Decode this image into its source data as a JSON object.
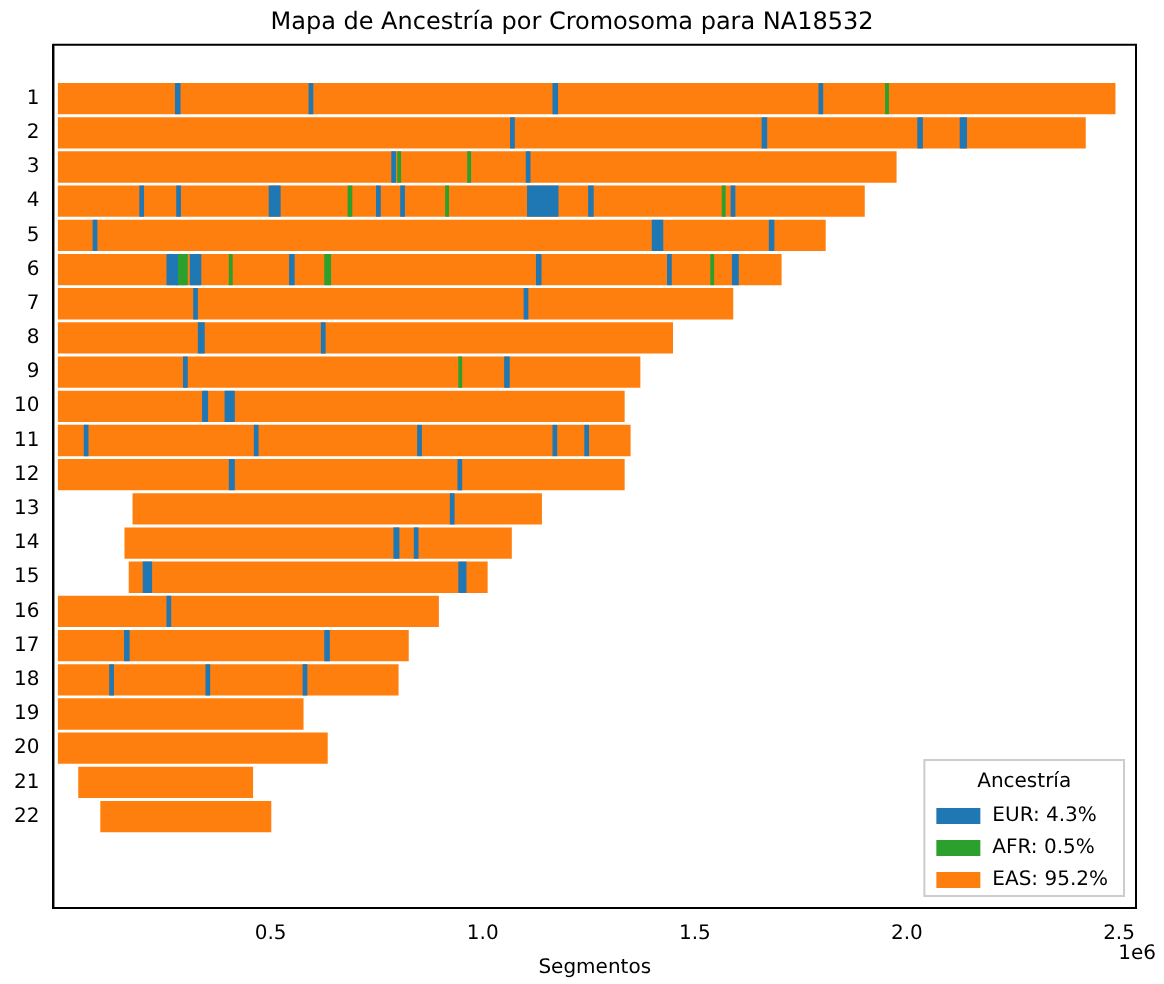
{
  "chart_data": {
    "type": "bar",
    "orientation": "horizontal",
    "title": "Mapa de Ancestría por Cromosoma para NA18532",
    "xlabel": "Segmentos",
    "legend_title": "Ancestría",
    "legend": "bottom right",
    "grid": false,
    "annotations": [
      "1e6"
    ],
    "categories": [
      "1",
      "2",
      "3",
      "4",
      "5",
      "6",
      "7",
      "8",
      "9",
      "10",
      "11",
      "12",
      "13",
      "14",
      "15",
      "16",
      "17",
      "18",
      "19",
      "20",
      "21",
      "22"
    ],
    "xlim": [
      -0.012,
      2.54
    ],
    "xticks": [
      0.5,
      {
        "value": 1,
        "label": "1.0"
      },
      1.5,
      {
        "value": 2,
        "label": "2.0"
      },
      2.5
    ],
    "series": [
      {
        "name": "EUR: 4.3%",
        "color": "#1f77b4",
        "values": [
          0.01,
          0.008,
          0.008,
          0.008,
          0.008,
          0.024,
          0.008,
          0.013,
          0.008,
          0.011,
          0.008,
          0.011,
          0.008,
          0.011,
          0.019,
          0.008,
          0.01,
          0.008,
          null,
          null,
          null,
          null
        ],
        "base": [
          0.276,
          1.066,
          0.786,
          0.192,
          0.082,
          0.256,
          0.319,
          0.33,
          0.295,
          0.34,
          0.061,
          0.403,
          0.924,
          0.791,
          0.2,
          0.256,
          0.156,
          0.121,
          null,
          null,
          null,
          null
        ]
      },
      {
        "color": "#1f77b4",
        "values": [
          0.008,
          0.01,
          0.008,
          0.008,
          0.024,
          0.024,
          0.008,
          0.008,
          0.01,
          0.021,
          0.008,
          0.008,
          null,
          0.008,
          0.016,
          null,
          0.01,
          0.008,
          null,
          null,
          null,
          null
        ],
        "base": [
          0.591,
          1.659,
          1.103,
          0.279,
          1.4,
          0.311,
          1.098,
          0.62,
          1.052,
          0.393,
          0.462,
          0.942,
          null,
          0.839,
          0.944,
          null,
          0.628,
          0.348,
          null,
          null,
          null,
          null
        ]
      },
      {
        "color": "#1f77b4",
        "values": [
          0.01,
          0.01,
          null,
          0.025,
          0.01,
          0.01,
          null,
          null,
          null,
          null,
          0.008,
          null,
          null,
          null,
          null,
          null,
          null,
          0.008,
          null,
          null,
          null,
          null
        ],
        "base": [
          1.166,
          2.026,
          null,
          0.497,
          1.676,
          0.545,
          null,
          null,
          null,
          null,
          0.847,
          null,
          null,
          null,
          null,
          null,
          null,
          0.577,
          null,
          null,
          null,
          null
        ]
      },
      {
        "color": "#1f77b4",
        "values": [
          0.008,
          0.014,
          null,
          0.008,
          null,
          0.01,
          null,
          null,
          null,
          null,
          0.008,
          null,
          null,
          null,
          null,
          null,
          null,
          null,
          null,
          null,
          null,
          null
        ],
        "base": [
          1.793,
          2.126,
          null,
          0.75,
          null,
          1.127,
          null,
          null,
          null,
          null,
          1.166,
          null,
          null,
          null,
          null,
          null,
          null,
          null,
          null,
          null,
          null,
          null
        ]
      },
      {
        "color": "#1f77b4",
        "values": [
          null,
          null,
          null,
          0.008,
          null,
          0.008,
          null,
          null,
          null,
          null,
          0.008,
          null,
          null,
          null,
          null,
          null,
          null,
          null,
          null,
          null,
          null,
          null
        ],
        "base": [
          null,
          null,
          null,
          0.807,
          null,
          1.436,
          null,
          null,
          null,
          null,
          1.241,
          null,
          null,
          null,
          null,
          null,
          null,
          null,
          null,
          null,
          null,
          null
        ]
      },
      {
        "color": "#1f77b4",
        "values": [
          null,
          null,
          null,
          0.071,
          null,
          0.013,
          null,
          null,
          null,
          null,
          null,
          null,
          null,
          null,
          null,
          null,
          null,
          null,
          null,
          null,
          null,
          null
        ],
        "base": [
          null,
          null,
          null,
          1.106,
          null,
          1.589,
          null,
          null,
          null,
          null,
          null,
          null,
          null,
          null,
          null,
          null,
          null,
          null,
          null,
          null,
          null,
          null
        ]
      },
      {
        "color": "#1f77b4",
        "values": [
          null,
          null,
          null,
          0.01,
          null,
          null,
          null,
          null,
          null,
          null,
          null,
          null,
          null,
          null,
          null,
          null,
          null,
          null,
          null,
          null,
          null,
          null
        ],
        "base": [
          null,
          null,
          null,
          1.25,
          null,
          null,
          null,
          null,
          null,
          null,
          null,
          null,
          null,
          null,
          null,
          null,
          null,
          null,
          null,
          null,
          null,
          null
        ]
      },
      {
        "color": "#1f77b4",
        "values": [
          null,
          null,
          null,
          0.008,
          null,
          null,
          null,
          null,
          null,
          null,
          null,
          null,
          null,
          null,
          null,
          null,
          null,
          null,
          null,
          null,
          null,
          null
        ],
        "base": [
          null,
          null,
          null,
          1.586,
          null,
          null,
          null,
          null,
          null,
          null,
          null,
          null,
          null,
          null,
          null,
          null,
          null,
          null,
          null,
          null,
          null,
          null
        ]
      },
      {
        "name": "AFR: 0.5%",
        "color": "#2ca02c",
        "values": [
          0.006,
          null,
          0.006,
          0.008,
          null,
          0.024,
          null,
          null,
          0.006,
          null,
          null,
          null,
          null,
          null,
          null,
          null,
          null,
          null,
          null,
          null,
          null,
          null
        ],
        "base": [
          1.95,
          null,
          0.8,
          0.683,
          null,
          0.279,
          null,
          null,
          0.944,
          null,
          null,
          null,
          null,
          null,
          null,
          null,
          null,
          null,
          null,
          null,
          null,
          null
        ]
      },
      {
        "color": "#2ca02c",
        "values": [
          null,
          null,
          0.006,
          0.006,
          null,
          0.006,
          null,
          null,
          null,
          null,
          null,
          null,
          null,
          null,
          null,
          null,
          null,
          null,
          null,
          null,
          null,
          null
        ],
        "base": [
          null,
          null,
          0.965,
          0.913,
          null,
          0.403,
          null,
          null,
          null,
          null,
          null,
          null,
          null,
          null,
          null,
          null,
          null,
          null,
          null,
          null,
          null,
          null
        ]
      },
      {
        "color": "#2ca02c",
        "values": [
          null,
          null,
          null,
          0.006,
          null,
          0.013,
          null,
          null,
          null,
          null,
          null,
          null,
          null,
          null,
          null,
          null,
          null,
          null,
          null,
          null,
          null,
          null
        ],
        "base": [
          null,
          null,
          null,
          1.565,
          null,
          0.628,
          null,
          null,
          null,
          null,
          null,
          null,
          null,
          null,
          null,
          null,
          null,
          null,
          null,
          null,
          null,
          null
        ]
      },
      {
        "color": "#2ca02c",
        "values": [
          null,
          null,
          null,
          null,
          null,
          0.006,
          null,
          null,
          null,
          null,
          null,
          null,
          null,
          null,
          null,
          null,
          null,
          null,
          null,
          null,
          null,
          null
        ],
        "base": [
          null,
          null,
          null,
          null,
          null,
          1.538,
          null,
          null,
          null,
          null,
          null,
          null,
          null,
          null,
          null,
          null,
          null,
          null,
          null,
          null,
          null,
          null
        ]
      },
      {
        "name": "EAS: 95.2%",
        "color": "#ff7f0e",
        "values": [
          2.49,
          2.42,
          1.974,
          1.899,
          1.807,
          1.703,
          1.589,
          1.447,
          1.37,
          1.333,
          1.347,
          1.333,
          0.962,
          0.91,
          0.843,
          0.895,
          0.824,
          0.8,
          0.576,
          0.633,
          0.409,
          0.4
        ],
        "base": [
          0,
          0,
          0,
          0,
          0,
          0,
          0,
          0,
          0,
          0,
          0,
          0,
          0.176,
          0.157,
          0.167,
          0,
          0,
          0,
          0,
          0,
          0.048,
          0.1
        ]
      }
    ]
  }
}
